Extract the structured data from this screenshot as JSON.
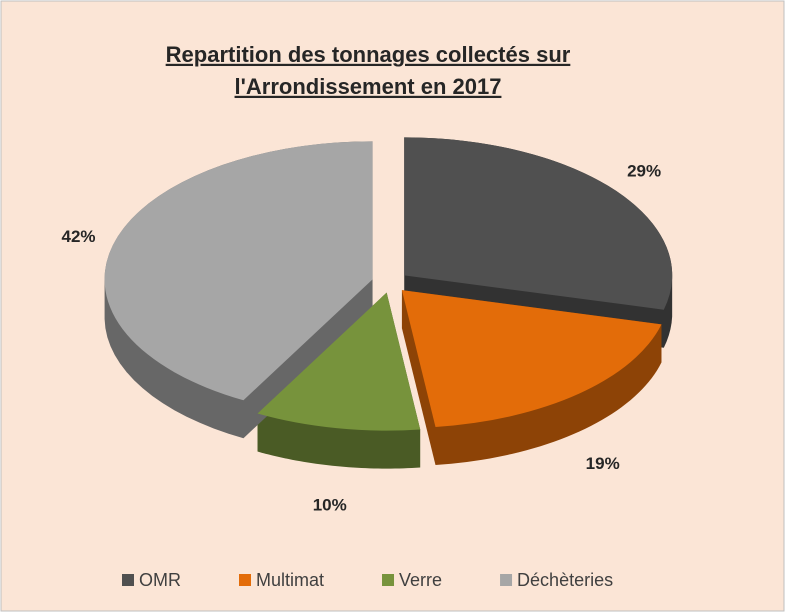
{
  "chart_data": {
    "type": "pie3d",
    "title": [
      "Repartition des tonnages collectés sur",
      "l'Arrondissement en 2017"
    ],
    "categories": [
      "OMR",
      "Multimat",
      "Verre",
      "Déchèteries"
    ],
    "values": [
      29,
      19,
      10,
      42
    ],
    "value_labels": [
      "29%",
      "19%",
      "10%",
      "42%"
    ],
    "colors": [
      "#505050",
      "#e36c09",
      "#77933c",
      "#a6a6a6"
    ],
    "legend": "bottom"
  }
}
